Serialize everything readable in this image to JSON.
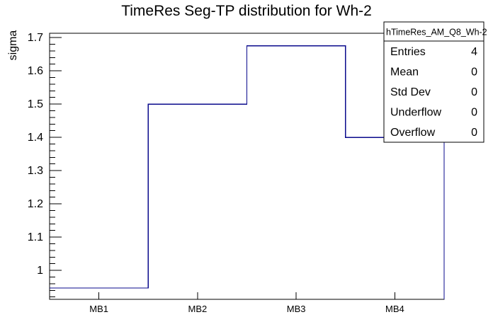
{
  "chart_data": {
    "type": "line",
    "subtype": "step-histogram",
    "title": "TimeRes Seg-TP distribution for Wh-2",
    "xlabel": "",
    "ylabel": "sigma",
    "categories": [
      "MB1",
      "MB2",
      "MB3",
      "MB4"
    ],
    "values": [
      0.947,
      1.5,
      1.675,
      1.4
    ],
    "ylim": [
      0.913,
      1.713
    ],
    "yticks": [
      1,
      1.1,
      1.2,
      1.3,
      1.4,
      1.5,
      1.6,
      1.7
    ],
    "ytick_labels": [
      "1",
      "1.1",
      "1.2",
      "1.3",
      "1.4",
      "1.5",
      "1.6",
      "1.7"
    ],
    "y_minor_step": 0.02,
    "grid": false,
    "legend_position": "none",
    "line_color": "#0a0a8c",
    "frame_color": "#000000",
    "background_color": "#ffffff"
  },
  "stats_box": {
    "header": "hTimeRes_AM_Q8_Wh-2",
    "rows": [
      {
        "label": "Entries",
        "value": "4"
      },
      {
        "label": "Mean",
        "value": "0"
      },
      {
        "label": "Std Dev",
        "value": "0"
      },
      {
        "label": "Underflow",
        "value": "0"
      },
      {
        "label": "Overflow",
        "value": "0"
      }
    ]
  }
}
